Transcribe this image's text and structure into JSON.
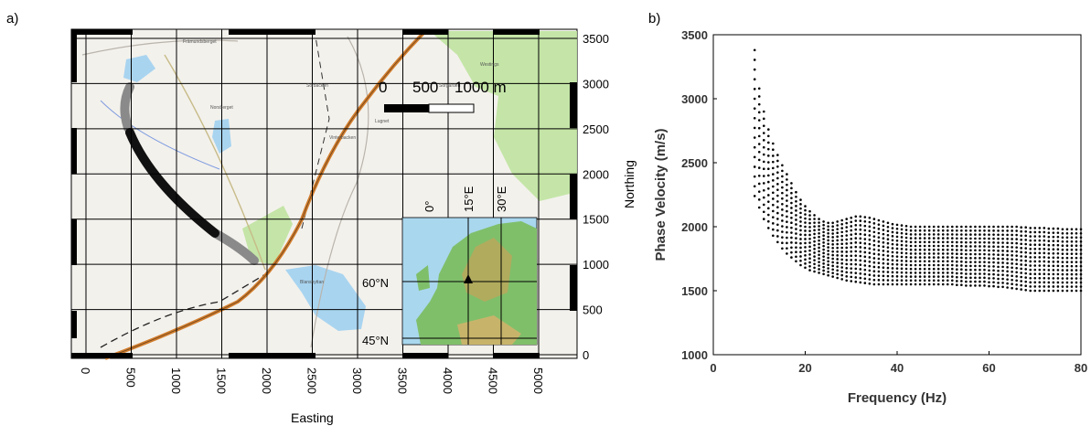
{
  "panels": {
    "a_label": "a)",
    "b_label": "b)"
  },
  "map": {
    "easting_label": "Easting",
    "northing_label": "Northing",
    "easting_ticks": [
      "0",
      "500",
      "1000",
      "1500",
      "2000",
      "2500",
      "3000",
      "3500",
      "4000",
      "4500",
      "5000"
    ],
    "northing_ticks": [
      "0",
      "500",
      "1000",
      "1500",
      "2000",
      "2500",
      "3000",
      "3500"
    ],
    "scalebar": {
      "labels": [
        "0",
        "500",
        "1000 m"
      ]
    },
    "inset": {
      "lat_labels": [
        "60°N",
        "45°N"
      ],
      "lon_labels": [
        "0°",
        "15°E",
        "30°E"
      ]
    },
    "place_names": [
      "Främundsberget",
      "Westings",
      "Norsberget",
      "Sörgården",
      "Lugnet",
      "Sörbäcken",
      "Blanshyttan",
      "Vinterbacken",
      "Dammsjön"
    ],
    "colors": {
      "road": "#d27d2c",
      "water": "#a8d4f0",
      "forest": "#bfe3a0",
      "profile_gray": "#8a8a8a",
      "profile_black": "#111111"
    }
  },
  "chart_data": {
    "type": "scatter",
    "xlabel": "Frequency (Hz)",
    "ylabel": "Phase Velocity (m/s)",
    "xlim": [
      0,
      80
    ],
    "ylim": [
      1000,
      3500
    ],
    "xticks": [
      0,
      20,
      40,
      60,
      80
    ],
    "yticks": [
      1000,
      1500,
      2000,
      2500,
      3000,
      3500
    ],
    "grid": false,
    "marker_color": "#000000",
    "frequencies_hz": [
      9,
      10,
      11,
      12,
      13,
      14,
      15,
      16,
      17,
      18,
      19,
      20,
      21,
      22,
      23,
      24,
      25,
      26,
      27,
      28,
      29,
      30,
      31,
      32,
      33,
      34,
      35,
      36,
      37,
      38,
      39,
      40,
      41,
      42,
      43,
      44,
      45,
      46,
      47,
      48,
      49,
      50,
      51,
      52,
      53,
      54,
      55,
      56,
      57,
      58,
      59,
      60,
      61,
      62,
      63,
      64,
      65,
      66,
      67,
      68,
      69,
      70,
      71,
      72,
      73,
      74,
      75,
      76,
      77,
      78,
      79,
      80
    ],
    "upper_envelope_ms": [
      3380,
      3080,
      2900,
      2760,
      2650,
      2560,
      2480,
      2410,
      2340,
      2270,
      2210,
      2160,
      2120,
      2090,
      2060,
      2040,
      2030,
      2030,
      2040,
      2050,
      2060,
      2070,
      2080,
      2080,
      2075,
      2070,
      2060,
      2050,
      2040,
      2030,
      2020,
      2015,
      2010,
      2005,
      2000,
      2000,
      2000,
      2000,
      2000,
      2000,
      2000,
      2000,
      2000,
      2000,
      2000,
      2000,
      2000,
      2000,
      2000,
      2000,
      2000,
      2000,
      2000,
      2000,
      2000,
      2000,
      2000,
      2000,
      1995,
      1995,
      1990,
      1990,
      1990,
      1990,
      1985,
      1985,
      1985,
      1980,
      1980,
      1980,
      1980,
      1980
    ],
    "lower_envelope_ms": [
      2240,
      2150,
      2060,
      1990,
      1930,
      1880,
      1830,
      1790,
      1760,
      1730,
      1700,
      1680,
      1660,
      1650,
      1640,
      1630,
      1620,
      1610,
      1600,
      1590,
      1580,
      1575,
      1570,
      1565,
      1560,
      1555,
      1550,
      1550,
      1550,
      1550,
      1550,
      1550,
      1550,
      1550,
      1550,
      1550,
      1550,
      1550,
      1550,
      1550,
      1550,
      1550,
      1550,
      1550,
      1545,
      1545,
      1540,
      1540,
      1540,
      1540,
      1540,
      1535,
      1535,
      1530,
      1530,
      1525,
      1520,
      1515,
      1510,
      1505,
      1500,
      1500,
      1500,
      1500,
      1500,
      1500,
      1500,
      1500,
      1500,
      1500,
      1500,
      1500
    ],
    "curves_per_frequency": 16
  }
}
